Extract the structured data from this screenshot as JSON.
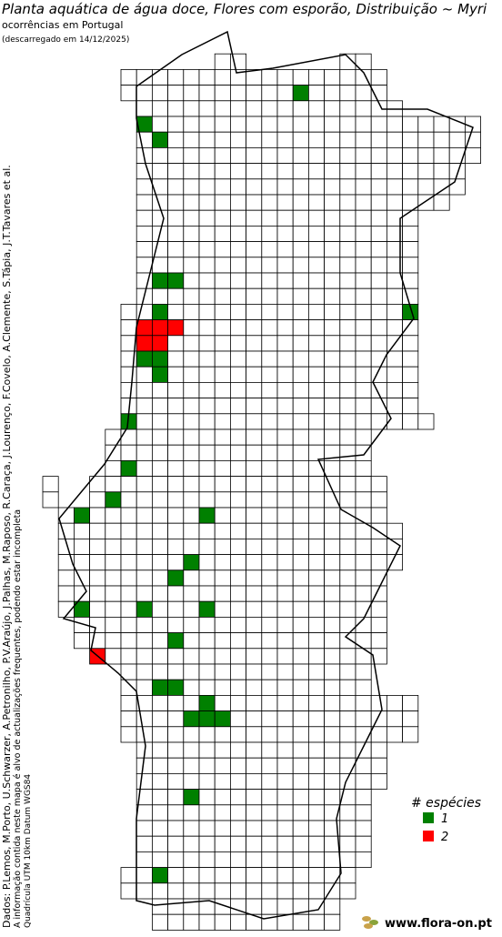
{
  "header": {
    "title": "Planta aquática de água doce, Flores com esporão, Distribuição ~ Myri",
    "subtitle": "ocorrências em Portugal",
    "download_note": "(descarregado em 14/12/2025)"
  },
  "credits": [
    "Dados: P.Lemos, M.Porto, U.Schwarzer, A.Petronilho, P.V.Araújo, J.Palhas, M.Raposo, R.Caraça, J.Lourenço, F.Covelo, A.Clemente, S.Tápia, J.T.Tavares et al.",
    "A informação contida neste mapa é alvo de actualizações frequentes, podendo estar incompleta",
    "Quadrícula UTM 10km Datum WGS84"
  ],
  "legend": {
    "title": "# espécies",
    "items": [
      {
        "label": "1",
        "color": "#008000"
      },
      {
        "label": "2",
        "color": "#ff0000"
      }
    ]
  },
  "footer": {
    "site": "www.flora-on.pt"
  }
}
